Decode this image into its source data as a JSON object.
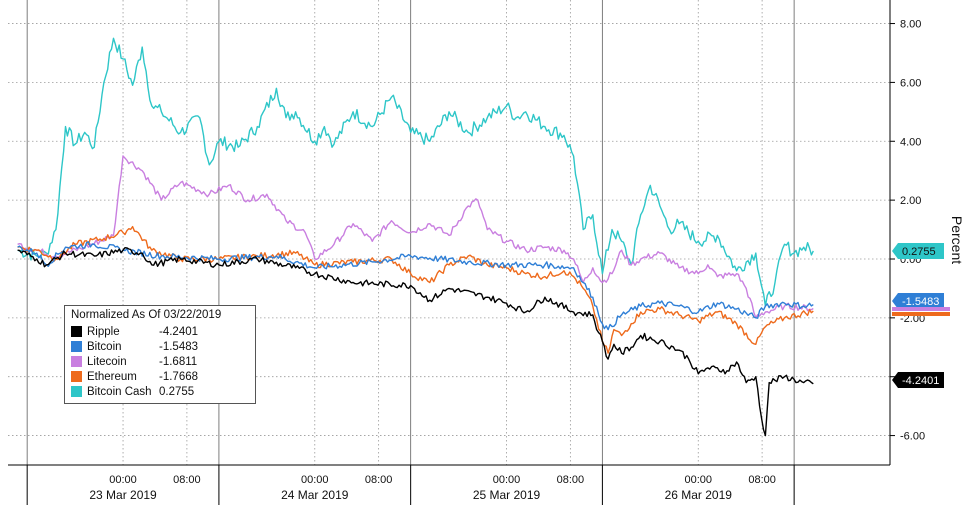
{
  "chart_data": {
    "type": "line",
    "ylabel": "Percent",
    "ylim": [
      -7.0,
      8.8
    ],
    "yticks": [
      "8.00",
      "6.00",
      "4.00",
      "2.00",
      "0.00",
      "-2.00",
      "-4.00",
      "-6.00"
    ],
    "ytick_values": [
      8,
      6,
      4,
      2,
      0,
      -2,
      -4,
      -6
    ],
    "xlim": [
      -0.6,
      4.0
    ],
    "time_ticks": [
      {
        "t": 0.0,
        "label": "00:00"
      },
      {
        "t": 0.333,
        "label": "08:00"
      },
      {
        "t": 1.0,
        "label": "00:00"
      },
      {
        "t": 1.333,
        "label": "08:00"
      },
      {
        "t": 2.0,
        "label": "00:00"
      },
      {
        "t": 2.333,
        "label": "08:00"
      },
      {
        "t": 3.0,
        "label": "00:00"
      },
      {
        "t": 3.333,
        "label": "08:00"
      }
    ],
    "day_labels": [
      "23 Mar 2019",
      "24 Mar 2019",
      "25 Mar 2019",
      "26 Mar 2019"
    ],
    "legend": {
      "title": "Normalized As Of 03/22/2019",
      "placement": "lower-left"
    },
    "grid": true,
    "series": [
      {
        "name": "Ripple",
        "last": "-4.2401",
        "color": "#000000",
        "points": [
          [
            -0.55,
            0.3
          ],
          [
            -0.45,
            0.0
          ],
          [
            -0.4,
            -0.2
          ],
          [
            -0.3,
            0.2
          ],
          [
            -0.15,
            0.1
          ],
          [
            0.0,
            0.3
          ],
          [
            0.1,
            0.2
          ],
          [
            0.15,
            -0.2
          ],
          [
            0.3,
            0.0
          ],
          [
            0.5,
            -0.2
          ],
          [
            0.7,
            0.0
          ],
          [
            0.9,
            -0.3
          ],
          [
            1.0,
            -0.5
          ],
          [
            1.2,
            -0.8
          ],
          [
            1.5,
            -0.9
          ],
          [
            1.6,
            -1.4
          ],
          [
            1.7,
            -1.0
          ],
          [
            1.9,
            -1.3
          ],
          [
            2.0,
            -1.5
          ],
          [
            2.1,
            -1.8
          ],
          [
            2.2,
            -1.3
          ],
          [
            2.35,
            -1.8
          ],
          [
            2.45,
            -1.9
          ],
          [
            2.48,
            -2.5
          ],
          [
            2.5,
            -2.8
          ],
          [
            2.53,
            -3.4
          ],
          [
            2.56,
            -2.9
          ],
          [
            2.6,
            -3.2
          ],
          [
            2.65,
            -3.0
          ],
          [
            2.7,
            -2.6
          ],
          [
            2.8,
            -2.8
          ],
          [
            2.9,
            -3.1
          ],
          [
            2.95,
            -3.4
          ],
          [
            3.0,
            -3.9
          ],
          [
            3.05,
            -3.7
          ],
          [
            3.15,
            -3.8
          ],
          [
            3.2,
            -3.5
          ],
          [
            3.25,
            -4.2
          ],
          [
            3.3,
            -4.0
          ],
          [
            3.33,
            -5.4
          ],
          [
            3.35,
            -6.0
          ],
          [
            3.37,
            -4.2
          ],
          [
            3.45,
            -4.0
          ],
          [
            3.55,
            -4.2
          ],
          [
            3.6,
            -4.2401
          ]
        ]
      },
      {
        "name": "Bitcoin",
        "last": "-1.5483",
        "color": "#2f7fd6",
        "points": [
          [
            -0.55,
            0.4
          ],
          [
            -0.45,
            0.2
          ],
          [
            -0.4,
            -0.2
          ],
          [
            -0.3,
            0.4
          ],
          [
            -0.15,
            0.5
          ],
          [
            0.0,
            0.3
          ],
          [
            0.2,
            0.1
          ],
          [
            0.5,
            0.0
          ],
          [
            0.8,
            0.1
          ],
          [
            1.0,
            -0.3
          ],
          [
            1.3,
            -0.1
          ],
          [
            1.5,
            0.1
          ],
          [
            1.8,
            -0.1
          ],
          [
            2.0,
            -0.2
          ],
          [
            2.2,
            -0.2
          ],
          [
            2.35,
            -0.3
          ],
          [
            2.4,
            -0.8
          ],
          [
            2.45,
            -1.3
          ],
          [
            2.5,
            -2.2
          ],
          [
            2.53,
            -2.4
          ],
          [
            2.6,
            -1.9
          ],
          [
            2.7,
            -1.6
          ],
          [
            2.8,
            -1.5
          ],
          [
            2.9,
            -1.6
          ],
          [
            3.0,
            -1.8
          ],
          [
            3.1,
            -1.5
          ],
          [
            3.2,
            -1.7
          ],
          [
            3.3,
            -2.0
          ],
          [
            3.35,
            -1.6
          ],
          [
            3.45,
            -1.5
          ],
          [
            3.55,
            -1.6
          ],
          [
            3.6,
            -1.5483
          ]
        ]
      },
      {
        "name": "Litecoin",
        "last": "-1.6811",
        "color": "#c97fe0",
        "points": [
          [
            -0.55,
            0.5
          ],
          [
            -0.45,
            0.3
          ],
          [
            -0.35,
            0.1
          ],
          [
            -0.2,
            0.4
          ],
          [
            -0.05,
            0.8
          ],
          [
            0.0,
            3.5
          ],
          [
            0.1,
            3.0
          ],
          [
            0.2,
            2.0
          ],
          [
            0.3,
            2.6
          ],
          [
            0.45,
            2.2
          ],
          [
            0.55,
            2.5
          ],
          [
            0.65,
            2.0
          ],
          [
            0.75,
            2.2
          ],
          [
            0.85,
            1.3
          ],
          [
            0.95,
            0.9
          ],
          [
            1.0,
            0.0
          ],
          [
            1.1,
            0.5
          ],
          [
            1.2,
            1.2
          ],
          [
            1.3,
            0.6
          ],
          [
            1.4,
            1.3
          ],
          [
            1.5,
            0.9
          ],
          [
            1.6,
            1.2
          ],
          [
            1.7,
            0.8
          ],
          [
            1.8,
            1.8
          ],
          [
            1.85,
            2.0
          ],
          [
            1.9,
            1.0
          ],
          [
            2.0,
            0.6
          ],
          [
            2.1,
            0.3
          ],
          [
            2.2,
            0.4
          ],
          [
            2.3,
            0.3
          ],
          [
            2.35,
            0.0
          ],
          [
            2.4,
            -0.8
          ],
          [
            2.45,
            -0.3
          ],
          [
            2.5,
            -0.8
          ],
          [
            2.55,
            -0.5
          ],
          [
            2.6,
            0.3
          ],
          [
            2.65,
            -0.2
          ],
          [
            2.7,
            0.0
          ],
          [
            2.8,
            0.2
          ],
          [
            2.9,
            -0.3
          ],
          [
            3.0,
            -0.5
          ],
          [
            3.05,
            -0.2
          ],
          [
            3.1,
            -0.6
          ],
          [
            3.2,
            -0.5
          ],
          [
            3.25,
            -1.0
          ],
          [
            3.3,
            -2.0
          ],
          [
            3.35,
            -1.8
          ],
          [
            3.45,
            -1.6
          ],
          [
            3.6,
            -1.6811
          ]
        ]
      },
      {
        "name": "Ethereum",
        "last": "-1.7668",
        "color": "#ee6a1c",
        "points": [
          [
            -0.55,
            0.4
          ],
          [
            -0.45,
            0.3
          ],
          [
            -0.35,
            0.0
          ],
          [
            -0.25,
            0.5
          ],
          [
            -0.1,
            0.7
          ],
          [
            0.0,
            0.9
          ],
          [
            0.05,
            1.1
          ],
          [
            0.15,
            0.3
          ],
          [
            0.3,
            0.0
          ],
          [
            0.5,
            0.0
          ],
          [
            0.7,
            0.1
          ],
          [
            0.9,
            0.2
          ],
          [
            1.0,
            -0.2
          ],
          [
            1.2,
            -0.1
          ],
          [
            1.4,
            0.0
          ],
          [
            1.5,
            -0.5
          ],
          [
            1.6,
            -0.8
          ],
          [
            1.7,
            -0.2
          ],
          [
            1.8,
            0.1
          ],
          [
            1.9,
            -0.2
          ],
          [
            2.0,
            -0.3
          ],
          [
            2.1,
            -0.5
          ],
          [
            2.2,
            -0.6
          ],
          [
            2.3,
            -0.4
          ],
          [
            2.35,
            -0.6
          ],
          [
            2.4,
            -1.0
          ],
          [
            2.45,
            -1.6
          ],
          [
            2.5,
            -2.8
          ],
          [
            2.53,
            -3.2
          ],
          [
            2.56,
            -2.4
          ],
          [
            2.6,
            -2.6
          ],
          [
            2.65,
            -2.2
          ],
          [
            2.7,
            -1.8
          ],
          [
            2.8,
            -1.7
          ],
          [
            2.9,
            -1.9
          ],
          [
            3.0,
            -2.1
          ],
          [
            3.1,
            -1.8
          ],
          [
            3.2,
            -2.2
          ],
          [
            3.3,
            -2.9
          ],
          [
            3.35,
            -2.3
          ],
          [
            3.45,
            -2.0
          ],
          [
            3.6,
            -1.7668
          ]
        ]
      },
      {
        "name": "Bitcoin Cash",
        "last": "0.2755",
        "color": "#2ec6c8",
        "points": [
          [
            -0.55,
            0.3
          ],
          [
            -0.45,
            0.1
          ],
          [
            -0.4,
            0.2
          ],
          [
            -0.35,
            1.0
          ],
          [
            -0.3,
            4.5
          ],
          [
            -0.25,
            3.9
          ],
          [
            -0.2,
            4.3
          ],
          [
            -0.15,
            3.8
          ],
          [
            -0.1,
            6.0
          ],
          [
            -0.05,
            7.5
          ],
          [
            0.0,
            6.8
          ],
          [
            0.05,
            5.9
          ],
          [
            0.1,
            7.2
          ],
          [
            0.15,
            5.2
          ],
          [
            0.2,
            5.0
          ],
          [
            0.3,
            4.3
          ],
          [
            0.4,
            4.8
          ],
          [
            0.45,
            3.2
          ],
          [
            0.5,
            4.0
          ],
          [
            0.6,
            3.8
          ],
          [
            0.7,
            4.5
          ],
          [
            0.8,
            5.8
          ],
          [
            0.85,
            4.8
          ],
          [
            0.9,
            5.0
          ],
          [
            1.0,
            4.0
          ],
          [
            1.05,
            4.5
          ],
          [
            1.1,
            3.9
          ],
          [
            1.2,
            5.0
          ],
          [
            1.3,
            4.5
          ],
          [
            1.4,
            5.5
          ],
          [
            1.5,
            4.3
          ],
          [
            1.6,
            4.0
          ],
          [
            1.7,
            5.0
          ],
          [
            1.8,
            4.3
          ],
          [
            1.9,
            4.8
          ],
          [
            2.0,
            5.2
          ],
          [
            2.05,
            4.8
          ],
          [
            2.1,
            5.0
          ],
          [
            2.2,
            4.5
          ],
          [
            2.3,
            4.2
          ],
          [
            2.35,
            3.5
          ],
          [
            2.4,
            1.0
          ],
          [
            2.45,
            1.5
          ],
          [
            2.5,
            -0.5
          ],
          [
            2.55,
            1.0
          ],
          [
            2.6,
            0.6
          ],
          [
            2.65,
            -0.2
          ],
          [
            2.7,
            1.5
          ],
          [
            2.75,
            2.5
          ],
          [
            2.8,
            1.8
          ],
          [
            2.85,
            1.0
          ],
          [
            2.9,
            1.2
          ],
          [
            3.0,
            0.6
          ],
          [
            3.1,
            0.8
          ],
          [
            3.2,
            -0.4
          ],
          [
            3.3,
            0.2
          ],
          [
            3.35,
            -1.6
          ],
          [
            3.4,
            -0.8
          ],
          [
            3.45,
            0.5
          ],
          [
            3.5,
            0.2
          ],
          [
            3.55,
            0.4
          ],
          [
            3.6,
            0.2755
          ]
        ]
      }
    ]
  }
}
